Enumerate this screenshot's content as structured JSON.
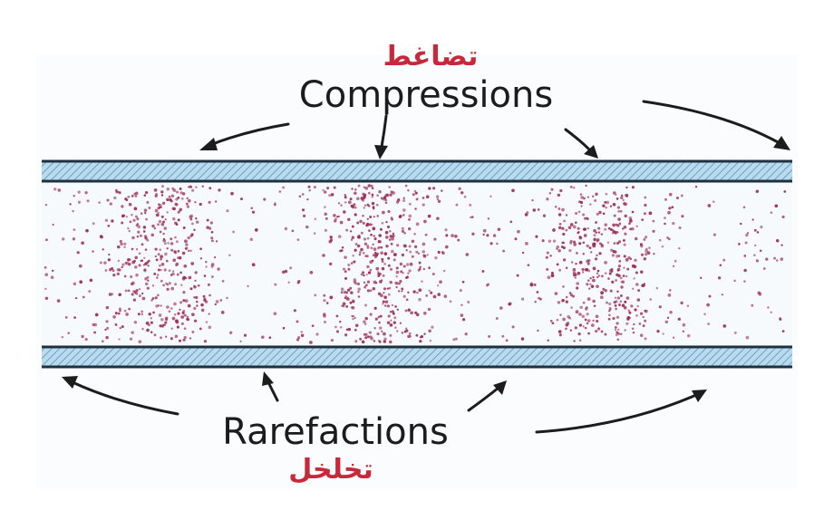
{
  "labels": {
    "top_arabic": "تضاغط",
    "top_english": "Compressions",
    "bottom_english": "Rarefactions",
    "bottom_arabic": "تخلخل"
  },
  "colors": {
    "tube_fill": "#f6fafc",
    "wall_blue": "#a9cfe6",
    "wall_edge": "#203040",
    "particle": "#9a2a55",
    "arabic_text": "#c8283a",
    "text": "#1c1c1c"
  },
  "compression_zones": 3,
  "rarefaction_zones": 4
}
